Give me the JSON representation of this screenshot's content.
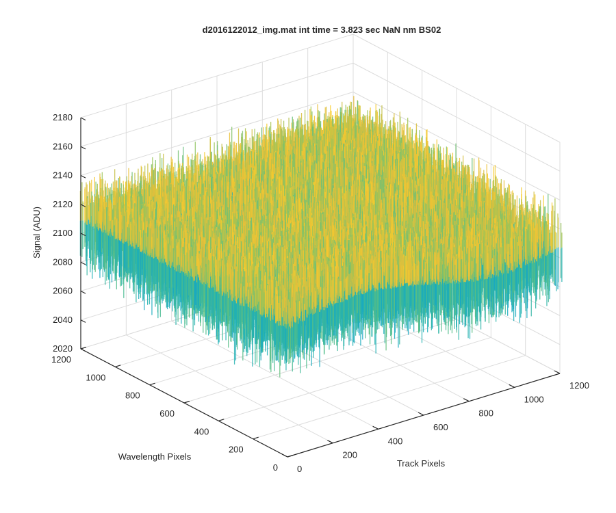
{
  "chart_data": {
    "type": "surface",
    "title": "d2016122012_img.mat int time = 3.823 sec  NaN nm BS02",
    "xlabel": "Track Pixels",
    "ylabel": "Wavelength Pixels",
    "zlabel": "Signal (ADU)",
    "xlim": [
      0,
      1200
    ],
    "ylim": [
      0,
      1200
    ],
    "zlim": [
      2020,
      2180
    ],
    "x_ticks": [
      "0",
      "200",
      "400",
      "600",
      "800",
      "1000",
      "1200"
    ],
    "y_ticks": [
      "0",
      "200",
      "400",
      "600",
      "800",
      "1000",
      "1200"
    ],
    "z_ticks": [
      "2020",
      "2040",
      "2060",
      "2080",
      "2100",
      "2120",
      "2140",
      "2160",
      "2180"
    ],
    "grid": true,
    "colormap": [
      "#0d9bd6",
      "#1fb1b4",
      "#52bd89",
      "#9cc456",
      "#e7bd3a",
      "#f8cd2c"
    ],
    "surface_summary": {
      "mean_signal": 2105,
      "noise_range": [
        2040,
        2165
      ],
      "description_values": {
        "x_size": 1200,
        "y_size": 1200
      }
    }
  }
}
